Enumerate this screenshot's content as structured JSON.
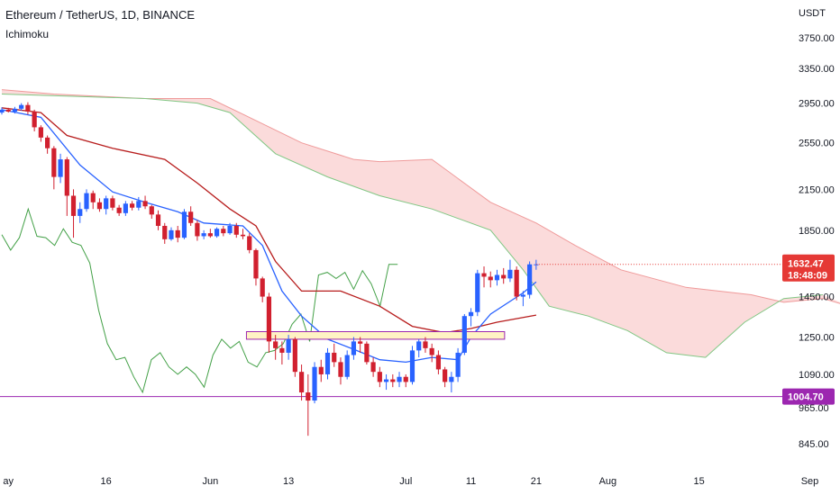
{
  "header": {
    "title": "Ethereum / TetherUS, 1D, BINANCE",
    "indicator": "Ichimoku"
  },
  "colors": {
    "up": "#2962ff",
    "down": "#d1202f",
    "conversion": "#2962ff",
    "base": "#b71c1c",
    "lagging": "#43a047",
    "cloud_bear": "#f8bdbd",
    "cloud_bull": "#c8e6c9",
    "support": "#9c27b0",
    "price_tag": "#e53935",
    "zone_fill": "#fff3c4",
    "zone_border": "#9c27b0"
  },
  "chart_data": {
    "type": "candlestick",
    "y_scale": "log",
    "currency": "USDT",
    "y_ticks": [
      "3750.00",
      "3350.00",
      "2950.00",
      "2550.00",
      "2150.00",
      "1850.00",
      "1450.00",
      "1250.00",
      "1090.00",
      "965.00",
      "845.00"
    ],
    "y_tick_values": [
      3750,
      3350,
      2950,
      2550,
      2150,
      1850,
      1450,
      1250,
      1090,
      965,
      845
    ],
    "x_ticks": [
      {
        "label": "ay",
        "date": "2022-05-01"
      },
      {
        "label": "16",
        "date": "2022-05-16"
      },
      {
        "label": "Jun",
        "date": "2022-06-01"
      },
      {
        "label": "13",
        "date": "2022-06-13"
      },
      {
        "label": "Jul",
        "date": "2022-07-01"
      },
      {
        "label": "11",
        "date": "2022-07-11"
      },
      {
        "label": "21",
        "date": "2022-07-21"
      },
      {
        "label": "Aug",
        "date": "2022-08-01"
      },
      {
        "label": "15",
        "date": "2022-08-15"
      },
      {
        "label": "Sep",
        "date": "2022-09-01"
      }
    ],
    "first_date": "2022-04-30",
    "candles": [
      [
        2850,
        2905,
        2830,
        2880
      ],
      [
        2880,
        2900,
        2850,
        2860
      ],
      [
        2860,
        2910,
        2840,
        2890
      ],
      [
        2890,
        2950,
        2870,
        2930
      ],
      [
        2930,
        2960,
        2830,
        2860
      ],
      [
        2860,
        2880,
        2660,
        2700
      ],
      [
        2700,
        2720,
        2560,
        2600
      ],
      [
        2600,
        2620,
        2450,
        2500
      ],
      [
        2500,
        2520,
        2150,
        2250
      ],
      [
        2250,
        2450,
        2200,
        2400
      ],
      [
        2400,
        2420,
        1950,
        2100
      ],
      [
        2100,
        2150,
        1800,
        1950
      ],
      [
        1950,
        2050,
        1900,
        2000
      ],
      [
        2000,
        2150,
        1980,
        2120
      ],
      [
        2120,
        2140,
        2000,
        2050
      ],
      [
        2050,
        2080,
        1980,
        2000
      ],
      [
        2000,
        2100,
        1960,
        2080
      ],
      [
        2080,
        2100,
        1990,
        2010
      ],
      [
        2010,
        2030,
        1950,
        1970
      ],
      [
        1970,
        2060,
        1950,
        2040
      ],
      [
        2040,
        2060,
        1990,
        2010
      ],
      [
        2010,
        2090,
        1990,
        2060
      ],
      [
        2060,
        2100,
        2000,
        2020
      ],
      [
        2020,
        2030,
        1930,
        1960
      ],
      [
        1960,
        1990,
        1850,
        1880
      ],
      [
        1880,
        1900,
        1760,
        1790
      ],
      [
        1790,
        1870,
        1780,
        1850
      ],
      [
        1850,
        1880,
        1770,
        1800
      ],
      [
        1800,
        2000,
        1790,
        1980
      ],
      [
        1980,
        2020,
        1880,
        1900
      ],
      [
        1900,
        1920,
        1780,
        1810
      ],
      [
        1810,
        1850,
        1790,
        1830
      ],
      [
        1830,
        1860,
        1800,
        1810
      ],
      [
        1810,
        1870,
        1800,
        1860
      ],
      [
        1860,
        1880,
        1810,
        1830
      ],
      [
        1830,
        1900,
        1820,
        1880
      ],
      [
        1880,
        1900,
        1800,
        1820
      ],
      [
        1820,
        1860,
        1790,
        1810
      ],
      [
        1810,
        1830,
        1700,
        1720
      ],
      [
        1720,
        1730,
        1510,
        1550
      ],
      [
        1550,
        1560,
        1420,
        1450
      ],
      [
        1450,
        1470,
        1180,
        1230
      ],
      [
        1230,
        1260,
        1150,
        1200
      ],
      [
        1200,
        1230,
        1130,
        1180
      ],
      [
        1180,
        1260,
        1150,
        1240
      ],
      [
        1240,
        1250,
        1080,
        1100
      ],
      [
        1100,
        1130,
        990,
        1020
      ],
      [
        1020,
        1090,
        870,
        990
      ],
      [
        990,
        1140,
        980,
        1120
      ],
      [
        1120,
        1150,
        1060,
        1090
      ],
      [
        1090,
        1200,
        1070,
        1180
      ],
      [
        1180,
        1220,
        1120,
        1140
      ],
      [
        1140,
        1160,
        1050,
        1080
      ],
      [
        1080,
        1190,
        1070,
        1170
      ],
      [
        1170,
        1250,
        1150,
        1230
      ],
      [
        1230,
        1250,
        1180,
        1220
      ],
      [
        1220,
        1230,
        1130,
        1140
      ],
      [
        1140,
        1160,
        1080,
        1100
      ],
      [
        1100,
        1120,
        1040,
        1060
      ],
      [
        1060,
        1090,
        1030,
        1070
      ],
      [
        1070,
        1090,
        1040,
        1060
      ],
      [
        1060,
        1100,
        1040,
        1080
      ],
      [
        1080,
        1090,
        1040,
        1060
      ],
      [
        1060,
        1210,
        1050,
        1190
      ],
      [
        1190,
        1240,
        1160,
        1230
      ],
      [
        1230,
        1250,
        1180,
        1200
      ],
      [
        1200,
        1220,
        1140,
        1170
      ],
      [
        1170,
        1190,
        1090,
        1110
      ],
      [
        1110,
        1120,
        1040,
        1060
      ],
      [
        1060,
        1100,
        1020,
        1080
      ],
      [
        1080,
        1200,
        1060,
        1180
      ],
      [
        1180,
        1360,
        1170,
        1350
      ],
      [
        1350,
        1390,
        1300,
        1370
      ],
      [
        1370,
        1600,
        1350,
        1580
      ],
      [
        1580,
        1620,
        1500,
        1560
      ],
      [
        1560,
        1590,
        1500,
        1540
      ],
      [
        1540,
        1600,
        1510,
        1570
      ],
      [
        1570,
        1610,
        1520,
        1550
      ],
      [
        1550,
        1660,
        1530,
        1600
      ],
      [
        1600,
        1620,
        1430,
        1450
      ],
      [
        1450,
        1480,
        1400,
        1460
      ],
      [
        1460,
        1650,
        1440,
        1632.47
      ],
      [
        1632.47,
        1660,
        1600,
        1632.47
      ]
    ],
    "conversion_line": [
      [
        0,
        2880
      ],
      [
        6,
        2800
      ],
      [
        12,
        2350
      ],
      [
        17,
        2130
      ],
      [
        22,
        2050
      ],
      [
        27,
        1980
      ],
      [
        31,
        1900
      ],
      [
        37,
        1880
      ],
      [
        40,
        1750
      ],
      [
        43,
        1480
      ],
      [
        46,
        1350
      ],
      [
        50,
        1240
      ],
      [
        54,
        1195
      ],
      [
        58,
        1150
      ],
      [
        62,
        1140
      ],
      [
        66,
        1160
      ],
      [
        70,
        1150
      ],
      [
        72,
        1250
      ],
      [
        75,
        1360
      ],
      [
        80,
        1470
      ],
      [
        82,
        1530
      ]
    ],
    "base_line": [
      [
        0,
        2900
      ],
      [
        6,
        2850
      ],
      [
        10,
        2620
      ],
      [
        17,
        2500
      ],
      [
        25,
        2400
      ],
      [
        30,
        2200
      ],
      [
        35,
        2000
      ],
      [
        39,
        1880
      ],
      [
        42,
        1650
      ],
      [
        46,
        1480
      ],
      [
        52,
        1480
      ],
      [
        58,
        1400
      ],
      [
        63,
        1300
      ],
      [
        68,
        1270
      ],
      [
        72,
        1290
      ],
      [
        76,
        1320
      ],
      [
        82,
        1355
      ]
    ],
    "lagging_span": [
      [
        0,
        1820
      ],
      [
        1,
        1720
      ],
      [
        2,
        1800
      ],
      [
        3,
        2000
      ],
      [
        4,
        1810
      ],
      [
        5,
        1800
      ],
      [
        6,
        1750
      ],
      [
        7,
        1860
      ],
      [
        8,
        1770
      ],
      [
        9,
        1750
      ],
      [
        10,
        1640
      ],
      [
        11,
        1380
      ],
      [
        12,
        1220
      ],
      [
        13,
        1150
      ],
      [
        14,
        1160
      ],
      [
        15,
        1080
      ],
      [
        16,
        1020
      ],
      [
        17,
        1150
      ],
      [
        18,
        1180
      ],
      [
        19,
        1120
      ],
      [
        20,
        1090
      ],
      [
        21,
        1120
      ],
      [
        22,
        1090
      ],
      [
        23,
        1040
      ],
      [
        24,
        1170
      ],
      [
        25,
        1240
      ],
      [
        26,
        1200
      ],
      [
        27,
        1230
      ],
      [
        28,
        1140
      ],
      [
        29,
        1120
      ],
      [
        30,
        1180
      ],
      [
        31,
        1190
      ],
      [
        32,
        1220
      ],
      [
        33,
        1310
      ],
      [
        34,
        1360
      ],
      [
        35,
        1230
      ],
      [
        36,
        1570
      ],
      [
        37,
        1585
      ],
      [
        38,
        1550
      ],
      [
        39,
        1585
      ],
      [
        40,
        1490
      ],
      [
        41,
        1595
      ],
      [
        42,
        1520
      ],
      [
        43,
        1400
      ],
      [
        44,
        1632
      ],
      [
        45,
        1632
      ]
    ],
    "cloud_span_a": [
      [
        0,
        3100
      ],
      [
        8,
        3050
      ],
      [
        22,
        3000
      ],
      [
        32,
        3000
      ],
      [
        38,
        2800
      ],
      [
        46,
        2550
      ],
      [
        54,
        2400
      ],
      [
        58,
        2380
      ],
      [
        66,
        2400
      ],
      [
        75,
        2050
      ],
      [
        82,
        1900
      ],
      [
        88,
        1750
      ],
      [
        95,
        1600
      ],
      [
        105,
        1500
      ],
      [
        115,
        1460
      ],
      [
        120,
        1420
      ],
      [
        126,
        1440
      ],
      [
        130,
        1400
      ]
    ],
    "cloud_span_b": [
      [
        0,
        3050
      ],
      [
        22,
        3000
      ],
      [
        30,
        2950
      ],
      [
        35,
        2850
      ],
      [
        42,
        2450
      ],
      [
        50,
        2250
      ],
      [
        58,
        2100
      ],
      [
        66,
        2000
      ],
      [
        75,
        1850
      ],
      [
        80,
        1600
      ],
      [
        84,
        1400
      ],
      [
        90,
        1350
      ],
      [
        96,
        1280
      ],
      [
        102,
        1180
      ],
      [
        108,
        1160
      ],
      [
        114,
        1320
      ],
      [
        120,
        1440
      ],
      [
        126,
        1460
      ]
    ],
    "support_level": 1004.7,
    "last_price": "1632.47",
    "countdown": "18:48:09",
    "support_label": "1004.70",
    "resistance_zone": {
      "from_index": 41,
      "to_index": 82,
      "low": 1240,
      "high": 1275
    }
  }
}
